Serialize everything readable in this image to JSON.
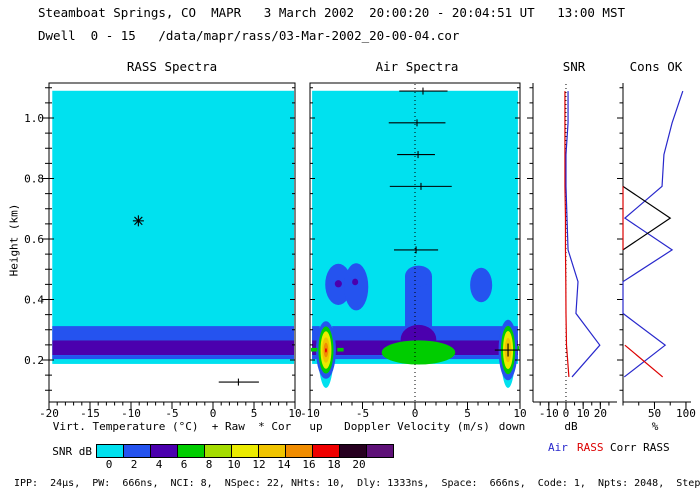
{
  "header": {
    "line1": "Steamboat Springs, CO  MAPR   3 March 2002  20:00:20 - 20:04:51 UT   13:00 MST",
    "line2": "Dwell  0 - 15   /data/mapr/rass/03-Mar-2002_20-00-04.cor"
  },
  "footer": {
    "params": "IPP:  24µs,  PW:  666ns,  NCI: 8,  NSpec: 22, NHts: 10,  Dly: 1333ns,  Space:  666ns,  Code: 1,  Npts: 2048,  Step 5"
  },
  "axis": {
    "ylabel": "Height (km)"
  },
  "legend": [
    {
      "label": "Air",
      "color": "#2828cc"
    },
    {
      "label": "RASS",
      "color": "#dc0000"
    },
    {
      "label": "Corr RASS",
      "color": "#000000"
    }
  ],
  "colorbar": {
    "label": "SNR dB",
    "values": [
      0,
      2,
      4,
      6,
      8,
      10,
      12,
      14,
      16,
      18,
      20
    ],
    "colors": [
      "#00e1ef",
      "#2553ef",
      "#4b00ae",
      "#00cd00",
      "#a4dc00",
      "#ebeb00",
      "#f0c400",
      "#f08c00",
      "#f00000",
      "#270020",
      "#5e1178"
    ]
  },
  "chart_data": [
    {
      "id": "rass_spectra",
      "type": "heatmap",
      "title": "RASS Spectra",
      "xlabel": "Virt. Temperature (°C)  + Raw  * Cor",
      "xrange": [
        -20,
        10
      ],
      "xticks": [
        -20,
        -15,
        -10,
        -5,
        0,
        5,
        10
      ],
      "xminor_step": 1,
      "yrange": [
        0.06,
        1.12
      ],
      "yticks": [
        0.2,
        0.4,
        0.6,
        0.8,
        1.0
      ],
      "yminor_step": 0.05,
      "fill": {
        "x": [
          -19.6,
          9.9
        ],
        "h": [
          0.187,
          1.09
        ],
        "level": 0
      },
      "bands": [
        {
          "h": [
            0.265,
            0.312
          ],
          "level": 2
        },
        {
          "h": [
            0.216,
            0.265
          ],
          "level": 4
        },
        {
          "h": [
            0.203,
            0.216
          ],
          "level": 2
        }
      ],
      "cor_marker": {
        "x": -9.1,
        "h": 0.66
      },
      "raw_marker": {
        "h": 0.127,
        "x0": 0.7,
        "x1": 5.6,
        "xc": 3.1
      }
    },
    {
      "id": "air_spectra",
      "type": "heatmap",
      "title": "Air Spectra",
      "xlabel": "Doppler Velocity (m/s)",
      "xlabel_left": "up",
      "xlabel_right": "down",
      "xrange": [
        -10,
        10
      ],
      "xticks": [
        -10,
        -5,
        0,
        5,
        10
      ],
      "xminor_step": 1,
      "zero_line": 0,
      "fill": {
        "x": [
          -9.8,
          9.8
        ],
        "h": [
          0.187,
          1.09
        ],
        "level": 0
      },
      "bands": [
        {
          "h": [
            0.265,
            0.312
          ],
          "level": 2
        },
        {
          "h": [
            0.216,
            0.265
          ],
          "level": 4
        },
        {
          "h": [
            0.203,
            0.216
          ],
          "level": 2
        }
      ],
      "features": [
        {
          "shape": "ellipse",
          "cx": -7.3,
          "cy": 0.45,
          "rx": 1.25,
          "ry": 0.068,
          "level": 2
        },
        {
          "shape": "ellipse",
          "cx": -5.6,
          "cy": 0.442,
          "rx": 1.15,
          "ry": 0.078,
          "level": 2
        },
        {
          "shape": "ellipse",
          "cx": -7.3,
          "cy": 0.452,
          "rx": 0.34,
          "ry": 0.012,
          "level": 4
        },
        {
          "shape": "ellipse",
          "cx": -5.7,
          "cy": 0.458,
          "rx": 0.29,
          "ry": 0.011,
          "level": 4
        },
        {
          "shape": "rect",
          "x": [
            -0.95,
            1.62
          ],
          "h": [
            0.3,
            0.478
          ],
          "level": 2
        },
        {
          "shape": "ellipse",
          "cx": 0.33,
          "cy": 0.478,
          "rx": 1.28,
          "ry": 0.034,
          "level": 2
        },
        {
          "shape": "ellipse",
          "cx": 6.3,
          "cy": 0.448,
          "rx": 1.05,
          "ry": 0.057,
          "level": 2
        },
        {
          "shape": "ellipse",
          "cx": 0.33,
          "cy": 0.268,
          "rx": 1.7,
          "ry": 0.048,
          "level": 4
        },
        {
          "shape": "ellipse",
          "cx": 0.33,
          "cy": 0.225,
          "rx": 3.5,
          "ry": 0.04,
          "level": 6
        },
        {
          "shape": "ellipse",
          "cx": -8.48,
          "cy": 0.233,
          "rx": 0.75,
          "ry": 0.125,
          "level": 0
        },
        {
          "shape": "ellipse",
          "cx": -8.48,
          "cy": 0.233,
          "rx": 0.95,
          "ry": 0.095,
          "level": 2
        },
        {
          "shape": "ellipse",
          "cx": -8.48,
          "cy": 0.233,
          "rx": 0.72,
          "ry": 0.078,
          "level": 6
        },
        {
          "shape": "ellipse",
          "cx": -8.48,
          "cy": 0.233,
          "rx": 0.52,
          "ry": 0.062,
          "level": 10
        },
        {
          "shape": "ellipse",
          "cx": -8.48,
          "cy": 0.233,
          "rx": 0.36,
          "ry": 0.042,
          "level": 12
        },
        {
          "shape": "ellipse",
          "cx": -8.48,
          "cy": 0.233,
          "rx": 0.22,
          "ry": 0.024,
          "level": 14
        },
        {
          "shape": "ellipse",
          "cx": -8.48,
          "cy": 0.232,
          "rx": 0.09,
          "ry": 0.007,
          "level": 16
        },
        {
          "shape": "ellipse",
          "cx": 8.86,
          "cy": 0.233,
          "rx": 0.7,
          "ry": 0.125,
          "level": 0
        },
        {
          "shape": "ellipse",
          "cx": 8.86,
          "cy": 0.233,
          "rx": 0.9,
          "ry": 0.1,
          "level": 2
        },
        {
          "shape": "ellipse",
          "cx": 8.86,
          "cy": 0.233,
          "rx": 0.68,
          "ry": 0.08,
          "level": 6
        },
        {
          "shape": "ellipse",
          "cx": 8.86,
          "cy": 0.233,
          "rx": 0.48,
          "ry": 0.063,
          "level": 10
        },
        {
          "shape": "ellipse",
          "cx": 8.86,
          "cy": 0.233,
          "rx": 0.32,
          "ry": 0.04,
          "level": 12
        },
        {
          "shape": "rect",
          "x": [
            -10,
            -9.3
          ],
          "h": [
            0.228,
            0.24
          ],
          "level": 6
        },
        {
          "shape": "rect",
          "x": [
            -7.4,
            -6.8
          ],
          "h": [
            0.228,
            0.24
          ],
          "level": 6
        },
        {
          "shape": "rect",
          "x": [
            9.75,
            10
          ],
          "h": [
            0.232,
            0.246
          ],
          "level": 6
        }
      ],
      "spectra_markers": [
        {
          "h": 1.089,
          "x0": -1.5,
          "x1": 3.1,
          "xc": 0.76,
          "tick": 3.5
        },
        {
          "h": 0.984,
          "x0": -2.5,
          "x1": 2.9,
          "xc": 0.19,
          "tick": 3.5
        },
        {
          "h": 0.879,
          "x0": -1.7,
          "x1": 1.9,
          "xc": 0.29,
          "tick": 3.5
        },
        {
          "h": 0.774,
          "x0": -2.4,
          "x1": 3.5,
          "xc": 0.57,
          "tick": 3.5
        },
        {
          "h": 0.564,
          "x0": -2.0,
          "x1": 2.2,
          "xc": 0.1,
          "tick": 3.5
        },
        {
          "h": 0.233,
          "x0": 7.6,
          "x1": 10.0,
          "xc": 8.86,
          "tick": 6.5
        }
      ]
    },
    {
      "id": "snr",
      "type": "line",
      "title": "SNR",
      "xlabel": "dB",
      "xrange": [
        -19.2,
        29.7
      ],
      "xticks": [
        -10,
        0,
        10,
        20
      ],
      "xminor_step": 5,
      "zero_line": 0,
      "heights": [
        1.089,
        0.984,
        0.879,
        0.774,
        0.669,
        0.564,
        0.459,
        0.354,
        0.249,
        0.144
      ],
      "series": [
        {
          "name": "RASS",
          "color": "#dc0000",
          "values": [
            -0.6,
            -0.6,
            -0.6,
            -0.6,
            -0.3,
            -0.3,
            -0.1,
            0,
            0.3,
            1.7
          ]
        },
        {
          "name": "Air",
          "color": "#2828cc",
          "values": [
            1.2,
            1.2,
            0,
            0,
            0.6,
            1.2,
            7,
            5.8,
            19.7,
            3.5
          ]
        }
      ]
    },
    {
      "id": "cons_ok",
      "type": "line",
      "title": "Cons OK",
      "xlabel": "%",
      "xrange": [
        0,
        108
      ],
      "xticks": [
        50,
        100
      ],
      "xminor_step": 25,
      "heights": [
        1.089,
        0.984,
        0.879,
        0.774,
        0.669,
        0.564,
        0.459,
        0.354,
        0.249,
        0.144
      ],
      "series": [
        {
          "name": "Air",
          "color": "#2828cc",
          "values": [
            95,
            78,
            65,
            62,
            3,
            78,
            0,
            0,
            67,
            2
          ]
        },
        {
          "name": "Corr RASS",
          "color": "#000000",
          "points": [
            [
              0,
              0.774
            ],
            [
              75,
              0.669
            ],
            [
              0,
              0.564
            ]
          ]
        },
        {
          "name": "RASS",
          "color": "#dc0000",
          "segments": [
            [
              [
                0,
                0.774
              ],
              [
                0,
                0.564
              ]
            ],
            [
              [
                3,
                0.249
              ],
              [
                63,
                0.144
              ]
            ]
          ]
        }
      ]
    }
  ]
}
